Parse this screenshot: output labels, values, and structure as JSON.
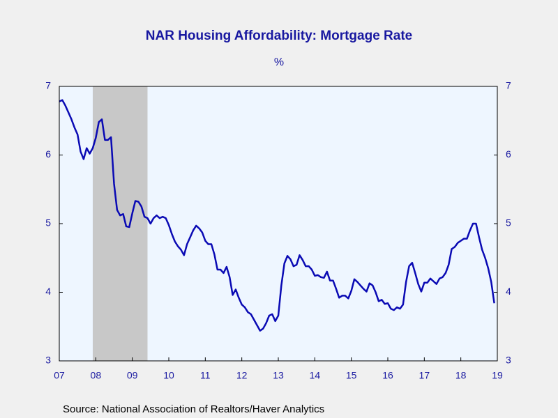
{
  "chart_data": {
    "type": "line",
    "title": "NAR Housing Affordability: Mortgage Rate",
    "subtitle": "%",
    "source": "Source:  National Association of Realtors/Haver Analytics",
    "categories": [
      "07",
      null,
      null,
      null,
      null,
      null,
      null,
      null,
      null,
      null,
      null,
      null,
      "08",
      null,
      null,
      null,
      null,
      null,
      null,
      null,
      null,
      null,
      null,
      null,
      "09",
      null,
      null,
      null,
      null,
      null,
      null,
      null,
      null,
      null,
      null,
      null,
      "10",
      null,
      null,
      null,
      null,
      null,
      null,
      null,
      null,
      null,
      null,
      null,
      "11",
      null,
      null,
      null,
      null,
      null,
      null,
      null,
      null,
      null,
      null,
      null,
      "12",
      null,
      null,
      null,
      null,
      null,
      null,
      null,
      null,
      null,
      null,
      null,
      "13",
      null,
      null,
      null,
      null,
      null,
      null,
      null,
      null,
      null,
      null,
      null,
      "14",
      null,
      null,
      null,
      null,
      null,
      null,
      null,
      null,
      null,
      null,
      null,
      "15",
      null,
      null,
      null,
      null,
      null,
      null,
      null,
      null,
      null,
      null,
      null,
      "16",
      null,
      null,
      null,
      null,
      null,
      null,
      null,
      null,
      null,
      null,
      null,
      "17",
      null,
      null,
      null,
      null,
      null,
      null,
      null,
      null,
      null,
      null,
      null,
      "18",
      null,
      null,
      null,
      null,
      null,
      null,
      null,
      null,
      null,
      null,
      null,
      "19"
    ],
    "series": [
      {
        "name": "Mortgage Rate",
        "color": "#0a0ab4",
        "values": [
          6.78,
          6.8,
          6.72,
          6.62,
          6.52,
          6.4,
          6.3,
          6.05,
          5.94,
          6.1,
          6.02,
          6.1,
          6.25,
          6.48,
          6.52,
          6.22,
          6.22,
          6.26,
          5.58,
          5.2,
          5.12,
          5.14,
          4.96,
          4.95,
          5.15,
          5.33,
          5.32,
          5.25,
          5.1,
          5.08,
          5.0,
          5.08,
          5.12,
          5.08,
          5.1,
          5.08,
          4.98,
          4.85,
          4.74,
          4.67,
          4.62,
          4.54,
          4.7,
          4.8,
          4.9,
          4.97,
          4.93,
          4.87,
          4.75,
          4.7,
          4.7,
          4.55,
          4.33,
          4.33,
          4.28,
          4.37,
          4.22,
          3.96,
          4.04,
          3.92,
          3.82,
          3.78,
          3.71,
          3.68,
          3.6,
          3.52,
          3.44,
          3.47,
          3.55,
          3.66,
          3.68,
          3.58,
          3.66,
          4.1,
          4.42,
          4.53,
          4.48,
          4.38,
          4.4,
          4.54,
          4.47,
          4.38,
          4.38,
          4.33,
          4.24,
          4.25,
          4.22,
          4.21,
          4.3,
          4.17,
          4.17,
          4.05,
          3.92,
          3.95,
          3.95,
          3.91,
          4.02,
          4.19,
          4.15,
          4.1,
          4.05,
          4.01,
          4.13,
          4.1,
          4.0,
          3.87,
          3.89,
          3.83,
          3.84,
          3.76,
          3.74,
          3.78,
          3.76,
          3.82,
          4.15,
          4.38,
          4.43,
          4.28,
          4.12,
          4.01,
          4.14,
          4.14,
          4.2,
          4.16,
          4.12,
          4.2,
          4.22,
          4.28,
          4.4,
          4.63,
          4.66,
          4.72,
          4.75,
          4.78,
          4.78,
          4.9,
          5.0,
          5.0,
          4.8,
          4.62,
          4.5,
          4.35,
          4.15,
          3.84,
          null
        ]
      }
    ],
    "recession": {
      "start": 11,
      "end": 29,
      "color": "#c8c8c8"
    },
    "ylim": [
      3,
      7
    ],
    "yticks": [
      3,
      4,
      5,
      6,
      7
    ],
    "y2ticks": [
      3,
      4,
      5,
      6,
      7
    ]
  }
}
